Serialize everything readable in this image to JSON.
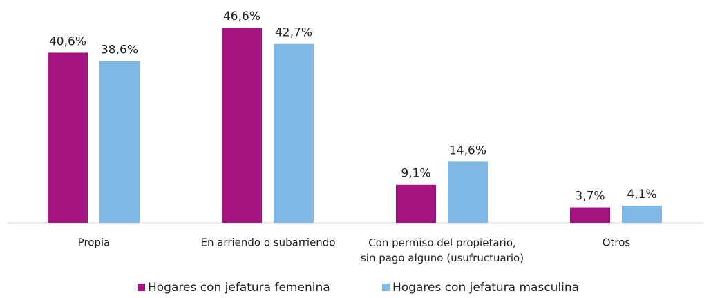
{
  "chart_data": {
    "type": "bar",
    "categories": [
      "Propia",
      "En arriendo o subarriendo",
      "Con permiso del propietario,\nsin pago alguno (usufructuario)",
      "Otros"
    ],
    "series": [
      {
        "name": "Hogares con jefatura femenina",
        "color": "#a5157f",
        "values": [
          40.6,
          46.6,
          9.1,
          3.7
        ],
        "value_labels": [
          "40,6%",
          "46,6%",
          "9,1%",
          "3,7%"
        ]
      },
      {
        "name": "Hogares con jefatura masculina",
        "color": "#7fb8e4",
        "values": [
          38.6,
          42.7,
          14.6,
          4.1
        ],
        "value_labels": [
          "38,6%",
          "42,7%",
          "14,6%",
          "4,1%"
        ]
      }
    ],
    "legend": "bottom"
  }
}
